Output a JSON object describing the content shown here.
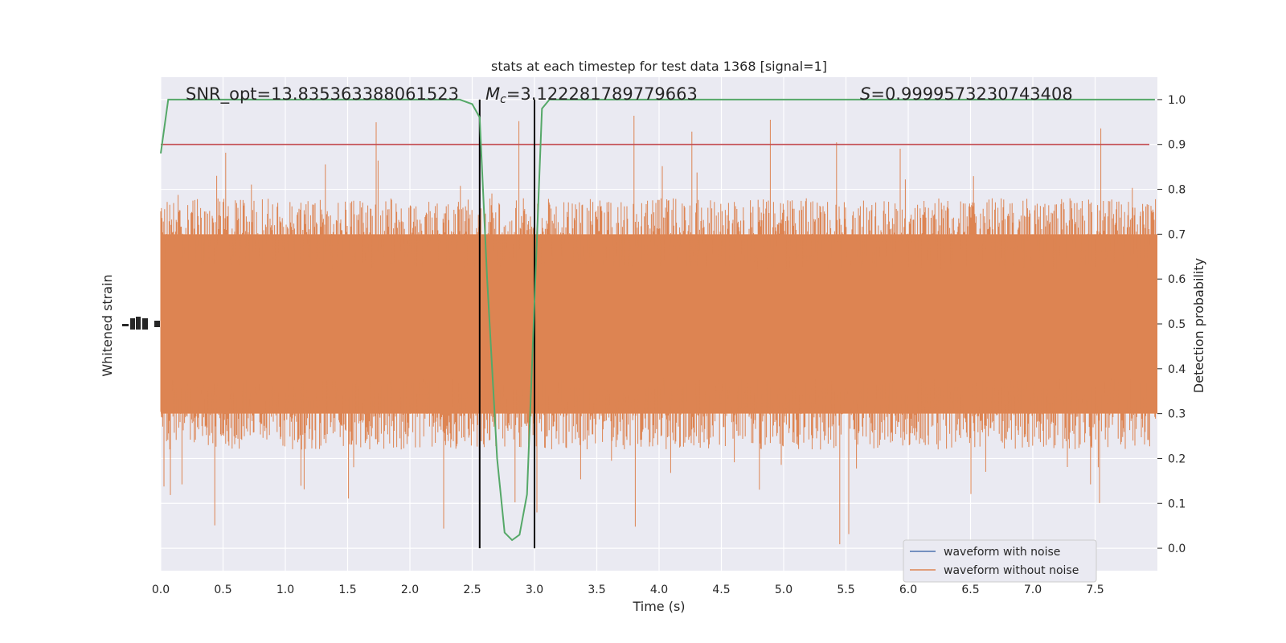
{
  "chart_data": {
    "type": "line",
    "title": "stats at each timestep for test data 1368 [signal=1]",
    "xlabel": "Time (s)",
    "ylabel_left": "Whitened strain",
    "ylabel_right": "Detection probability",
    "xlim": [
      0.0,
      8.0
    ],
    "ylim_right": [
      -0.05,
      1.05
    ],
    "x_ticks": [
      "0.0",
      "0.5",
      "1.0",
      "1.5",
      "2.0",
      "2.5",
      "3.0",
      "3.5",
      "4.0",
      "4.5",
      "5.0",
      "5.5",
      "6.0",
      "6.5",
      "7.0",
      "7.5"
    ],
    "y_ticks_right": [
      "0.0",
      "0.1",
      "0.2",
      "0.3",
      "0.4",
      "0.5",
      "0.6",
      "0.7",
      "0.8",
      "0.9",
      "1.0"
    ],
    "grid": true,
    "legend_position": "bottom-right",
    "annotations": {
      "snr": "SNR_opt=13.835363388061523",
      "mc_symbol": "M",
      "mc_sub": "c",
      "mc_value": "=3.122281789779663",
      "s_symbol": "S",
      "s_value": "=0.9999573230743408"
    },
    "threshold": 0.9,
    "vertical_lines_x": [
      2.56,
      3.0
    ],
    "series": [
      {
        "name": "waveform with noise",
        "color": "#4c72b0"
      },
      {
        "name": "waveform without noise",
        "color": "#dd8452"
      }
    ],
    "probability_line": {
      "color": "#55a868",
      "x": [
        0.0,
        0.06,
        0.2,
        0.5,
        1.0,
        1.5,
        2.0,
        2.4,
        2.5,
        2.56,
        2.62,
        2.7,
        2.76,
        2.82,
        2.88,
        2.94,
        3.0,
        3.06,
        3.12,
        3.3,
        4.0,
        5.0,
        6.0,
        7.0,
        7.98
      ],
      "y": [
        0.88,
        1.0,
        1.0,
        1.0,
        1.0,
        1.0,
        1.0,
        1.0,
        0.99,
        0.96,
        0.6,
        0.2,
        0.035,
        0.018,
        0.03,
        0.12,
        0.55,
        0.98,
        1.0,
        1.0,
        1.0,
        1.0,
        1.0,
        1.0,
        1.0
      ]
    },
    "threshold_color": "#c44e52",
    "marker_color": "#000000"
  }
}
